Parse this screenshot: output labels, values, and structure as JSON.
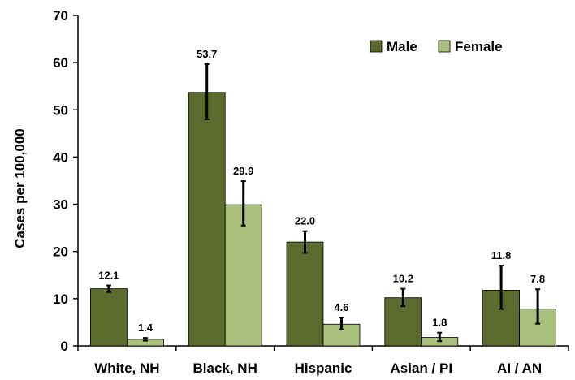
{
  "chart_data": {
    "type": "bar",
    "ylabel": "Cases per 100,000",
    "xlabel": "",
    "ylim": [
      0,
      70
    ],
    "yticks": [
      0,
      10,
      20,
      30,
      40,
      50,
      60,
      70
    ],
    "categories": [
      "White, NH",
      "Black, NH",
      "Hispanic",
      "Asian / PI",
      "AI / AN"
    ],
    "series": [
      {
        "name": "Male",
        "color": "#5b6b2e",
        "values": [
          12.1,
          53.7,
          22.0,
          10.2,
          11.8
        ],
        "labels": [
          "12.1",
          "53.7",
          "22.0",
          "10.2",
          "11.8"
        ],
        "error_low": [
          11.4,
          48.0,
          19.7,
          8.4,
          7.8
        ],
        "error_high": [
          12.8,
          59.7,
          24.3,
          12.1,
          17.0
        ]
      },
      {
        "name": "Female",
        "color": "#a9c07c",
        "values": [
          1.4,
          29.9,
          4.6,
          1.8,
          7.8
        ],
        "labels": [
          "1.4",
          "29.9",
          "4.6",
          "1.8",
          "7.8"
        ],
        "error_low": [
          1.1,
          25.5,
          3.5,
          1.0,
          4.7
        ],
        "error_high": [
          1.7,
          34.9,
          6.0,
          2.8,
          12.0
        ]
      }
    ],
    "legend_position": "top-right",
    "grid": false
  }
}
